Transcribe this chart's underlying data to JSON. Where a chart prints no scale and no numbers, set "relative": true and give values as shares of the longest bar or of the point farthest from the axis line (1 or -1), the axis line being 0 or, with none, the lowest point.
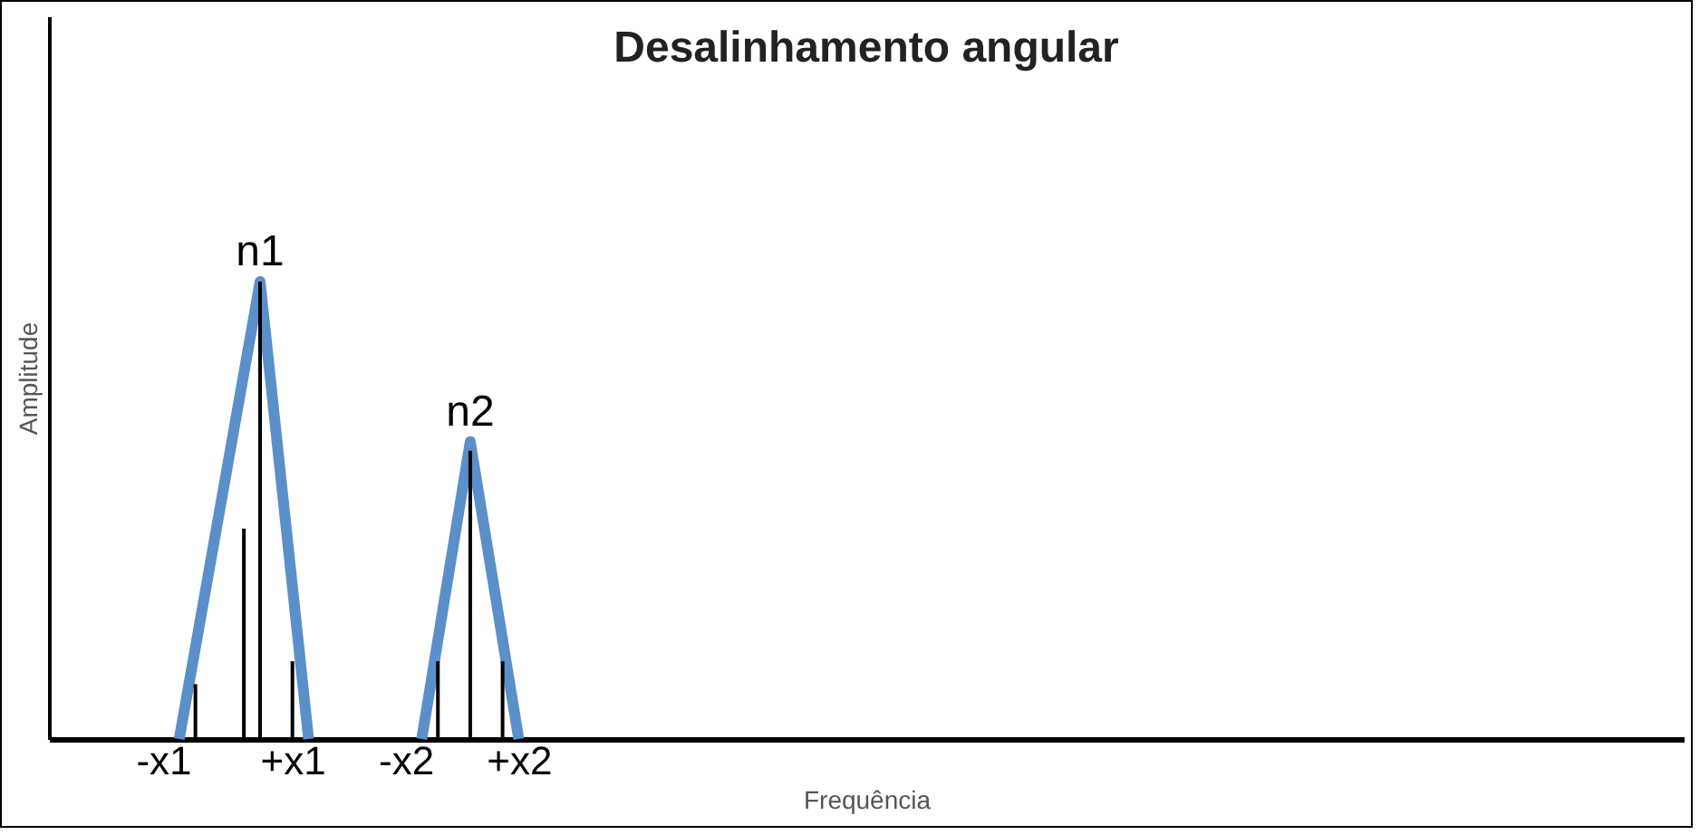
{
  "chart_data": {
    "type": "line",
    "title": "Desalinhamento angular",
    "xlabel": "Frequência",
    "ylabel": "Amplitude",
    "relative": true,
    "categories": [
      null,
      null,
      null,
      null,
      null,
      null,
      "-x1",
      null,
      null,
      null,
      null,
      null,
      null,
      null,
      "+x1",
      null,
      null,
      null,
      null,
      null,
      null,
      "-x2",
      null,
      null,
      null,
      null,
      null,
      null,
      "+x2",
      null,
      null,
      null,
      null,
      null,
      null,
      null,
      null,
      null,
      null,
      null,
      null,
      null,
      null,
      null,
      null,
      null,
      null,
      null,
      null,
      null,
      null,
      null,
      null,
      null,
      null,
      null,
      null,
      null,
      null,
      null,
      null,
      null,
      null,
      null,
      null,
      null,
      null,
      null,
      null,
      null,
      null,
      null,
      null,
      null,
      null,
      null,
      null,
      null,
      null,
      null,
      null,
      null,
      null,
      null,
      null,
      null,
      null,
      null,
      null,
      null,
      null,
      null,
      null,
      null,
      null,
      null,
      null,
      null,
      null,
      null
    ],
    "series": [
      {
        "color": "#5b8fc9",
        "values": [
          null,
          null,
          null,
          null,
          null,
          null,
          null,
          0,
          null,
          null,
          null,
          null,
          1,
          null,
          null,
          0,
          null,
          null,
          null,
          null,
          null,
          null,
          null,
          null,
          null,
          null,
          null,
          null,
          null,
          null,
          null,
          null,
          null,
          null,
          null,
          null,
          null,
          null,
          null,
          null,
          null,
          null,
          null,
          null,
          null,
          null,
          null,
          null,
          null,
          null,
          null,
          null,
          null,
          null,
          null,
          null,
          null,
          null,
          null,
          null,
          null,
          null,
          null,
          null,
          null,
          null,
          null,
          null,
          null,
          null,
          null,
          null,
          null,
          null,
          null,
          null,
          null,
          null,
          null,
          null,
          null,
          null,
          null,
          null,
          null,
          null,
          null,
          null,
          null,
          null,
          null,
          null,
          null,
          null,
          null,
          null,
          null,
          null,
          null,
          null
        ]
      },
      {
        "color": "#5b8fc9",
        "values": [
          null,
          null,
          null,
          null,
          null,
          null,
          null,
          null,
          null,
          null,
          null,
          null,
          null,
          null,
          null,
          null,
          null,
          null,
          null,
          null,
          null,
          null,
          0,
          null,
          null,
          0.65,
          null,
          null,
          0,
          null,
          null,
          null,
          null,
          null,
          null,
          null,
          null,
          null,
          null,
          null,
          null,
          null,
          null,
          null,
          null,
          null,
          null,
          null,
          null,
          null,
          null,
          null,
          null,
          null,
          null,
          null,
          null,
          null,
          null,
          null,
          null,
          null,
          null,
          null,
          null,
          null,
          null,
          null,
          null,
          null,
          null,
          null,
          null,
          null,
          null,
          null,
          null,
          null,
          null,
          null,
          null,
          null,
          null,
          null,
          null,
          null,
          null,
          null,
          null,
          null,
          null,
          null,
          null,
          null,
          null,
          null,
          null,
          null,
          null,
          null
        ]
      },
      {
        "type": "bar",
        "color": "#000000",
        "values": [
          null,
          null,
          null,
          null,
          null,
          null,
          null,
          null,
          0.12,
          null,
          null,
          0.46,
          1,
          null,
          0.17,
          null,
          null,
          null,
          null,
          null,
          null,
          null,
          null,
          0.17,
          null,
          0.63,
          null,
          0.17,
          null,
          null,
          null,
          null,
          null,
          null,
          null,
          null,
          null,
          null,
          null,
          null,
          null,
          null,
          null,
          null,
          null,
          null,
          null,
          null,
          null,
          null,
          null,
          null,
          null,
          null,
          null,
          null,
          null,
          null,
          null,
          null,
          null,
          null,
          null,
          null,
          null,
          null,
          null,
          null,
          null,
          null,
          null,
          null,
          null,
          null,
          null,
          null,
          null,
          null,
          null,
          null,
          null,
          null,
          null,
          null,
          null,
          null,
          null,
          null,
          null,
          null,
          null,
          null,
          null,
          null,
          null,
          null,
          null,
          null,
          null,
          null
        ]
      }
    ],
    "annotations": [
      {
        "text": "n1",
        "y": 1
      },
      {
        "text": "n2",
        "y": 0.65
      }
    ]
  }
}
